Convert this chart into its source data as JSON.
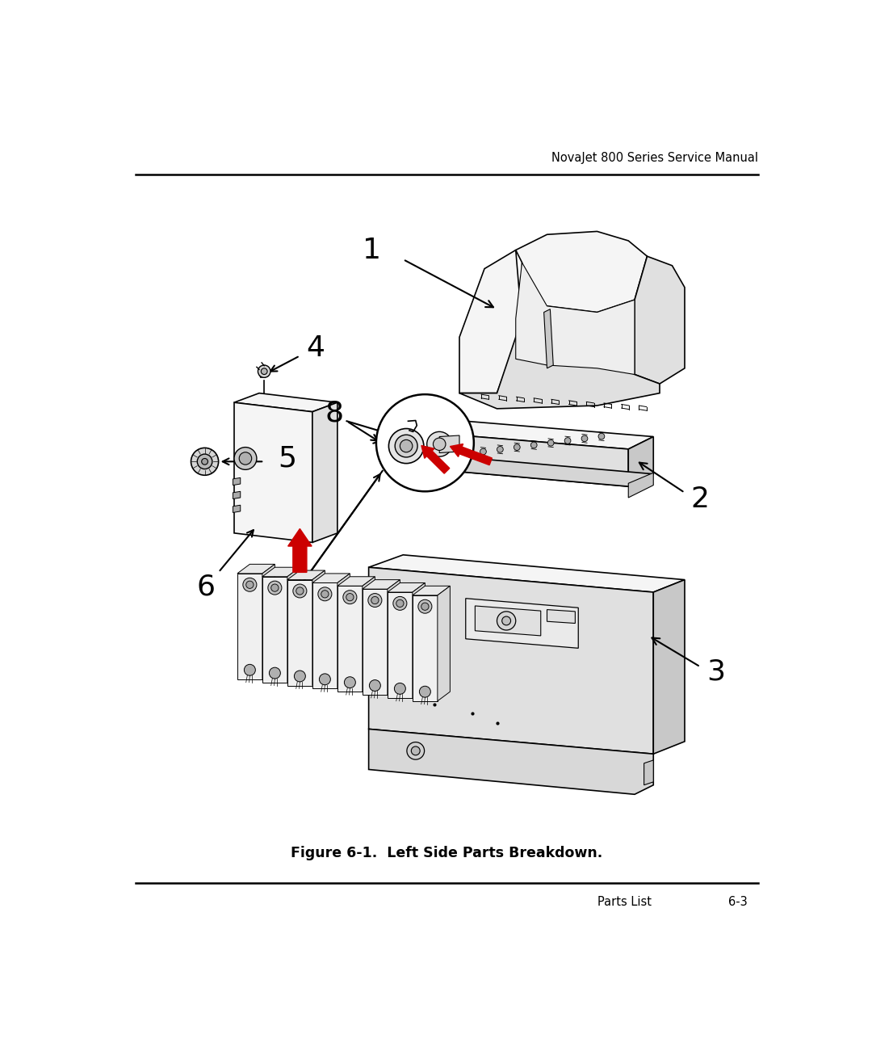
{
  "title_header": "NovaJet 800 Series Service Manual",
  "title_footer_left": "Parts List",
  "title_footer_right": "6-3",
  "caption": "Figure 6-1.  Left Side Parts Breakdown.",
  "bg_color": "#ffffff",
  "header_font_size": 10.5,
  "footer_font_size": 10.5,
  "caption_font_size": 12.5,
  "label_font_size": 26
}
